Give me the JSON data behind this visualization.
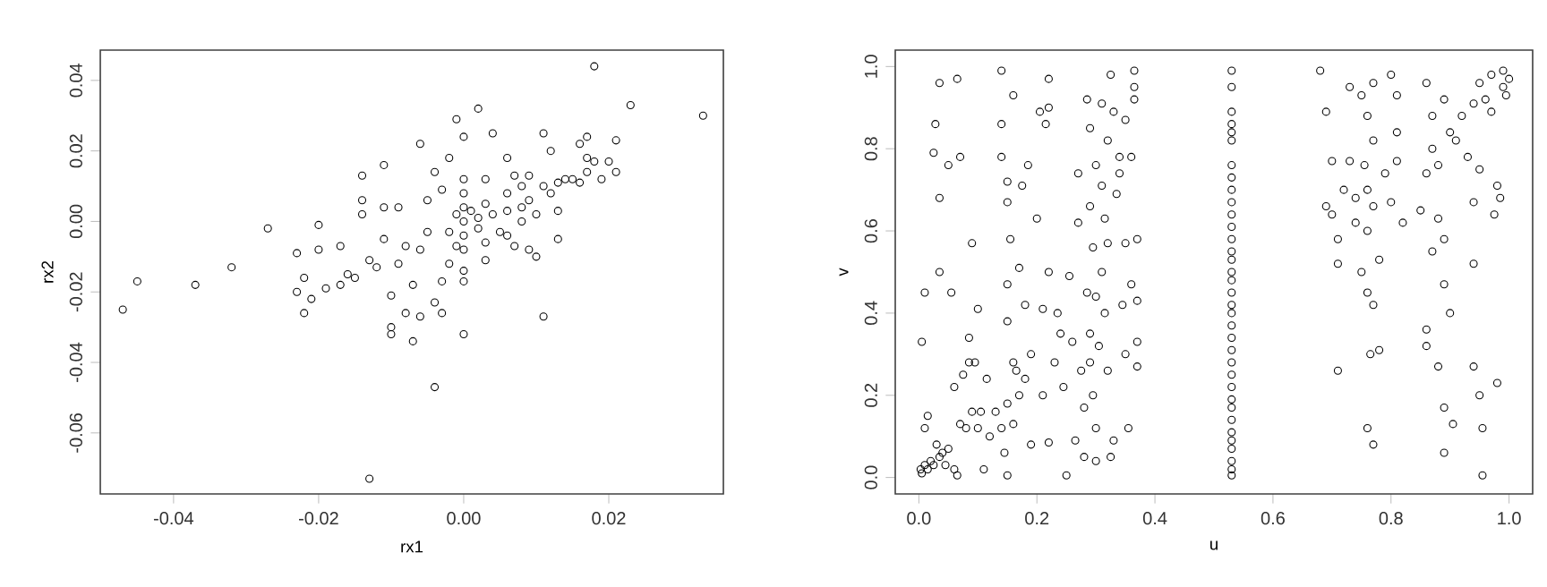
{
  "chart_data": [
    {
      "type": "scatter",
      "xlabel": "rx1",
      "ylabel": "rx2",
      "marker": "circle",
      "xlim": [
        -0.0501,
        0.0358
      ],
      "ylim": [
        -0.0773,
        0.0486
      ],
      "xticks": [
        {
          "value": -0.04,
          "label": "-0.04"
        },
        {
          "value": -0.02,
          "label": "-0.02"
        },
        {
          "value": 0,
          "label": "0.00"
        },
        {
          "value": 0.02,
          "label": "0.02"
        }
      ],
      "yticks": [
        {
          "value": -0.06,
          "label": "-0.06"
        },
        {
          "value": -0.04,
          "label": "-0.04"
        },
        {
          "value": -0.02,
          "label": "-0.02"
        },
        {
          "value": 0,
          "label": "0.00"
        },
        {
          "value": 0.02,
          "label": "0.02"
        },
        {
          "value": 0.04,
          "label": "0.04"
        }
      ],
      "x": [
        -0.047,
        -0.045,
        -0.037,
        -0.032,
        -0.027,
        -0.023,
        -0.022,
        -0.023,
        -0.022,
        -0.021,
        -0.02,
        -0.019,
        -0.02,
        -0.017,
        -0.017,
        -0.016,
        -0.015,
        -0.014,
        -0.014,
        -0.014,
        -0.013,
        -0.012,
        -0.011,
        -0.011,
        -0.011,
        -0.01,
        -0.01,
        -0.01,
        -0.009,
        -0.009,
        -0.008,
        -0.008,
        -0.007,
        -0.007,
        -0.006,
        -0.006,
        -0.006,
        -0.005,
        -0.005,
        -0.004,
        -0.004,
        -0.004,
        -0.003,
        -0.003,
        -0.003,
        -0.002,
        -0.002,
        -0.002,
        -0.001,
        -0.001,
        -0.001,
        0,
        0,
        0,
        0,
        0,
        0,
        0,
        0,
        0,
        0,
        0.001,
        0.002,
        0.002,
        0.002,
        0.003,
        0.003,
        0.003,
        0.003,
        0.004,
        0.004,
        0.005,
        0.006,
        0.006,
        0.006,
        0.006,
        0.007,
        0.007,
        0.008,
        0.008,
        0.008,
        0.009,
        0.009,
        0.009,
        0.01,
        0.01,
        0.011,
        0.011,
        0.011,
        0.012,
        0.012,
        0.013,
        0.013,
        0.013,
        0.014,
        0.015,
        0.016,
        0.016,
        0.017,
        0.017,
        0.017,
        0.018,
        0.018,
        0.019,
        0.02,
        0.021,
        0.021,
        0.023,
        0.033,
        -0.013
      ],
      "series": [
        {
          "color": "#000000",
          "values": [
            -0.025,
            -0.017,
            -0.018,
            -0.013,
            -0.002,
            -0.009,
            -0.016,
            -0.02,
            -0.026,
            -0.022,
            -0.001,
            -0.019,
            -0.008,
            -0.007,
            -0.018,
            -0.015,
            -0.016,
            0.006,
            0.002,
            0.013,
            -0.011,
            -0.013,
            -0.005,
            0.004,
            0.016,
            -0.03,
            -0.032,
            -0.021,
            0.004,
            -0.012,
            -0.026,
            -0.007,
            -0.034,
            -0.018,
            0.022,
            -0.027,
            -0.008,
            0.006,
            -0.003,
            0.014,
            -0.023,
            -0.047,
            -0.026,
            0.009,
            -0.017,
            0.018,
            -0.003,
            -0.012,
            0.029,
            0.002,
            -0.007,
            0.024,
            0.012,
            0.008,
            0.004,
            0,
            -0.004,
            -0.008,
            -0.014,
            -0.017,
            -0.032,
            0.003,
            0.032,
            0.001,
            -0.002,
            0.012,
            0.005,
            -0.006,
            -0.011,
            0.025,
            0.002,
            -0.003,
            0.018,
            0.008,
            0.003,
            -0.004,
            0.013,
            -0.007,
            0.01,
            0.004,
            0.0,
            0.006,
            0.013,
            -0.008,
            0.002,
            -0.01,
            -0.027,
            0.025,
            0.01,
            0.008,
            0.02,
            0.003,
            0.011,
            -0.005,
            0.012,
            0.012,
            0.022,
            0.011,
            0.024,
            0.018,
            0.014,
            0.044,
            0.017,
            0.012,
            0.017,
            0.023,
            0.014,
            0.033,
            0.03,
            -0.073
          ]
        }
      ]
    },
    {
      "type": "scatter",
      "xlabel": "u",
      "ylabel": "v",
      "marker": "circle",
      "xlim": [
        -0.04,
        1.04
      ],
      "ylim": [
        -0.04,
        1.04
      ],
      "xticks": [
        {
          "value": 0,
          "label": "0.0"
        },
        {
          "value": 0.2,
          "label": "0.2"
        },
        {
          "value": 0.4,
          "label": "0.4"
        },
        {
          "value": 0.6,
          "label": "0.6"
        },
        {
          "value": 0.8,
          "label": "0.8"
        },
        {
          "value": 1,
          "label": "1.0"
        }
      ],
      "yticks": [
        {
          "value": 0,
          "label": "0.0"
        },
        {
          "value": 0.2,
          "label": "0.2"
        },
        {
          "value": 0.4,
          "label": "0.4"
        },
        {
          "value": 0.6,
          "label": "0.6"
        },
        {
          "value": 0.8,
          "label": "0.8"
        },
        {
          "value": 1,
          "label": "1.0"
        }
      ],
      "x": [
        0.003,
        0.005,
        0.01,
        0.015,
        0.02,
        0.025,
        0.03,
        0.035,
        0.04,
        0.045,
        0.05,
        0.06,
        0.065,
        0.005,
        0.01,
        0.01,
        0.015,
        0.025,
        0.028,
        0.035,
        0.035,
        0.035,
        0.05,
        0.055,
        0.06,
        0.065,
        0.07,
        0.07,
        0.075,
        0.08,
        0.085,
        0.085,
        0.09,
        0.09,
        0.095,
        0.1,
        0.1,
        0.105,
        0.11,
        0.115,
        0.12,
        0.13,
        0.14,
        0.14,
        0.14,
        0.14,
        0.145,
        0.15,
        0.15,
        0.15,
        0.15,
        0.15,
        0.15,
        0.155,
        0.16,
        0.16,
        0.16,
        0.165,
        0.17,
        0.17,
        0.175,
        0.18,
        0.18,
        0.185,
        0.19,
        0.19,
        0.2,
        0.205,
        0.21,
        0.21,
        0.215,
        0.22,
        0.22,
        0.22,
        0.22,
        0.23,
        0.235,
        0.24,
        0.245,
        0.25,
        0.255,
        0.26,
        0.265,
        0.27,
        0.27,
        0.275,
        0.28,
        0.28,
        0.285,
        0.285,
        0.29,
        0.29,
        0.29,
        0.29,
        0.295,
        0.295,
        0.3,
        0.3,
        0.3,
        0.3,
        0.305,
        0.31,
        0.31,
        0.31,
        0.315,
        0.315,
        0.32,
        0.32,
        0.32,
        0.325,
        0.325,
        0.33,
        0.33,
        0.335,
        0.34,
        0.34,
        0.345,
        0.35,
        0.35,
        0.35,
        0.355,
        0.36,
        0.36,
        0.365,
        0.365,
        0.365,
        0.37,
        0.37,
        0.37,
        0.37,
        0.53,
        0.53,
        0.53,
        0.53,
        0.53,
        0.53,
        0.53,
        0.53,
        0.53,
        0.53,
        0.53,
        0.53,
        0.53,
        0.53,
        0.53,
        0.53,
        0.53,
        0.53,
        0.53,
        0.53,
        0.53,
        0.53,
        0.53,
        0.53,
        0.53,
        0.53,
        0.53,
        0.53,
        0.53,
        0.53,
        0.53,
        0.53,
        0.53,
        0.53,
        0.53,
        0.68,
        0.69,
        0.69,
        0.7,
        0.7,
        0.71,
        0.71,
        0.71,
        0.72,
        0.73,
        0.73,
        0.74,
        0.74,
        0.75,
        0.75,
        0.755,
        0.76,
        0.76,
        0.76,
        0.76,
        0.76,
        0.765,
        0.77,
        0.77,
        0.77,
        0.77,
        0.77,
        0.78,
        0.78,
        0.79,
        0.8,
        0.8,
        0.81,
        0.81,
        0.81,
        0.82,
        0.85,
        0.86,
        0.86,
        0.86,
        0.86,
        0.87,
        0.87,
        0.87,
        0.88,
        0.88,
        0.88,
        0.89,
        0.89,
        0.89,
        0.89,
        0.89,
        0.9,
        0.9,
        0.905,
        0.91,
        0.92,
        0.93,
        0.94,
        0.94,
        0.94,
        0.94,
        0.95,
        0.95,
        0.95,
        0.955,
        0.955,
        0.96,
        0.97,
        0.97,
        0.975,
        0.98,
        0.98,
        0.985,
        0.99,
        0.99,
        1.0,
        0.995
      ],
      "series": [
        {
          "color": "#000000",
          "values": [
            0.02,
            0.01,
            0.03,
            0.02,
            0.04,
            0.03,
            0.08,
            0.05,
            0.06,
            0.03,
            0.07,
            0.02,
            0.005,
            0.33,
            0.45,
            0.12,
            0.15,
            0.79,
            0.86,
            0.96,
            0.68,
            0.5,
            0.76,
            0.45,
            0.22,
            0.97,
            0.78,
            0.13,
            0.25,
            0.12,
            0.34,
            0.28,
            0.57,
            0.16,
            0.28,
            0.12,
            0.41,
            0.16,
            0.02,
            0.24,
            0.1,
            0.16,
            0.99,
            0.86,
            0.78,
            0.12,
            0.06,
            0.72,
            0.67,
            0.47,
            0.38,
            0.18,
            0.005,
            0.58,
            0.93,
            0.28,
            0.13,
            0.26,
            0.51,
            0.2,
            0.71,
            0.42,
            0.24,
            0.76,
            0.3,
            0.08,
            0.63,
            0.89,
            0.41,
            0.2,
            0.86,
            0.9,
            0.97,
            0.5,
            0.085,
            0.28,
            0.4,
            0.35,
            0.22,
            0.005,
            0.49,
            0.33,
            0.09,
            0.62,
            0.74,
            0.26,
            0.05,
            0.17,
            0.92,
            0.45,
            0.85,
            0.66,
            0.35,
            0.28,
            0.56,
            0.2,
            0.12,
            0.04,
            0.76,
            0.44,
            0.32,
            0.91,
            0.71,
            0.5,
            0.63,
            0.4,
            0.82,
            0.57,
            0.26,
            0.05,
            0.98,
            0.89,
            0.09,
            0.69,
            0.74,
            0.78,
            0.42,
            0.87,
            0.57,
            0.3,
            0.12,
            0.78,
            0.47,
            0.99,
            0.95,
            0.92,
            0.58,
            0.43,
            0.33,
            0.27,
            0.005,
            0.02,
            0.04,
            0.07,
            0.09,
            0.11,
            0.14,
            0.17,
            0.19,
            0.22,
            0.25,
            0.28,
            0.31,
            0.34,
            0.37,
            0.4,
            0.42,
            0.45,
            0.48,
            0.5,
            0.53,
            0.55,
            0.58,
            0.61,
            0.64,
            0.67,
            0.7,
            0.73,
            0.76,
            0.82,
            0.84,
            0.86,
            0.89,
            0.95,
            0.99,
            0.99,
            0.89,
            0.66,
            0.77,
            0.64,
            0.58,
            0.52,
            0.26,
            0.7,
            0.95,
            0.77,
            0.68,
            0.62,
            0.93,
            0.5,
            0.76,
            0.88,
            0.7,
            0.6,
            0.45,
            0.12,
            0.3,
            0.96,
            0.82,
            0.66,
            0.42,
            0.08,
            0.53,
            0.31,
            0.74,
            0.98,
            0.67,
            0.93,
            0.84,
            0.77,
            0.62,
            0.65,
            0.96,
            0.74,
            0.36,
            0.32,
            0.55,
            0.8,
            0.88,
            0.76,
            0.63,
            0.27,
            0.47,
            0.92,
            0.58,
            0.17,
            0.06,
            0.84,
            0.4,
            0.13,
            0.82,
            0.88,
            0.78,
            0.91,
            0.67,
            0.52,
            0.27,
            0.96,
            0.75,
            0.2,
            0.12,
            0.005,
            0.92,
            0.98,
            0.89,
            0.64,
            0.23,
            0.71,
            0.68,
            0.95,
            0.99,
            0.97,
            0.93
          ]
        }
      ]
    }
  ]
}
